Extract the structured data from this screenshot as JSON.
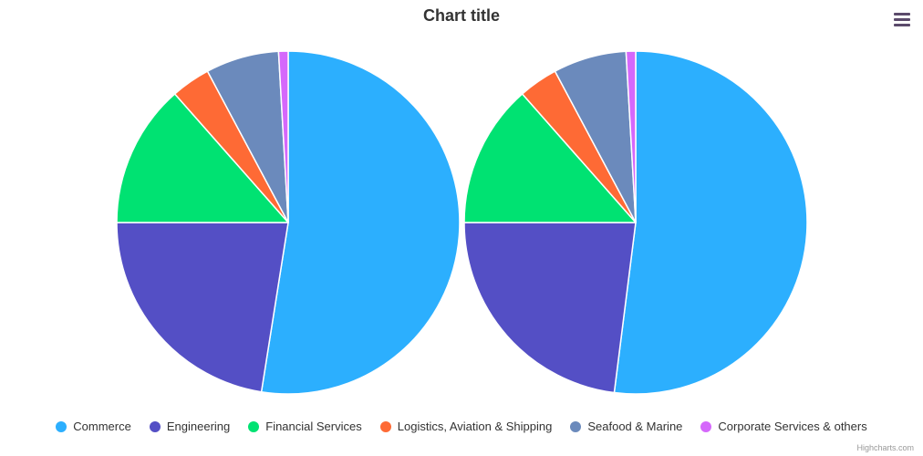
{
  "header": {
    "title": "Chart title"
  },
  "menu": {
    "icon": "hamburger-menu-icon"
  },
  "credits": {
    "text": "Highcharts.com"
  },
  "chart_data": {
    "type": "pie",
    "title": "Chart title",
    "legend_position": "bottom",
    "categories": [
      "Commerce",
      "Engineering",
      "Financial Services",
      "Logistics, Aviation & Shipping",
      "Seafood & Marine",
      "Corporate Services & others"
    ],
    "colors": [
      "#2caffe",
      "#544fc5",
      "#00e272",
      "#fe6a35",
      "#6b8abc",
      "#d568fb"
    ],
    "series": [
      {
        "values": [
          52.5,
          22.5,
          13.5,
          3.7,
          6.9,
          0.9
        ]
      },
      {
        "values": [
          52.0,
          23.0,
          13.5,
          3.7,
          6.9,
          0.9
        ]
      }
    ]
  }
}
